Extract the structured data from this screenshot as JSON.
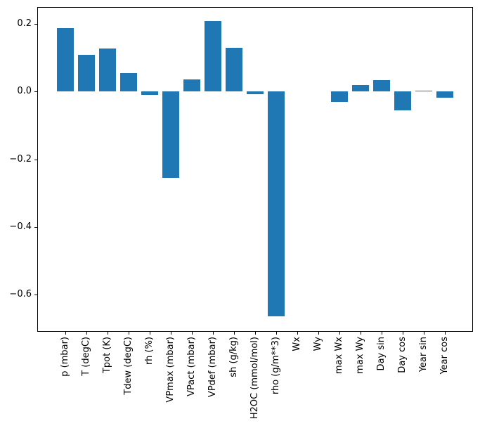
{
  "figure": {
    "background_color": "#ffffff",
    "spine_color": "#000000",
    "text_color": "#000000"
  },
  "chart_data": {
    "type": "bar",
    "title": "",
    "xlabel": "",
    "ylabel": "",
    "grid": false,
    "legend": null,
    "bar_color": "#1f77b4",
    "bar_width": 0.8,
    "xlim": [
      -1.34,
      19.34
    ],
    "ylim": [
      -0.71,
      0.25
    ],
    "categories": [
      "p (mbar)",
      "T (degC)",
      "Tpot (K)",
      "Tdew (degC)",
      "rh (%)",
      "VPmax (mbar)",
      "VPact (mbar)",
      "VPdef (mbar)",
      "sh (g/kg)",
      "H2OC (mmol/mol)",
      "rho (g/m**3)",
      "Wx",
      "Wy",
      "max Wx",
      "max Wy",
      "Day sin",
      "Day cos",
      "Year sin",
      "Year cos"
    ],
    "values": [
      0.188,
      0.108,
      0.127,
      0.055,
      -0.01,
      -0.254,
      0.036,
      0.209,
      0.13,
      -0.008,
      -0.665,
      0.0,
      0.0,
      -0.03,
      0.019,
      0.033,
      -0.056,
      0.002,
      -0.019
    ],
    "yticks": [
      {
        "value": 0.2,
        "label": "0.2"
      },
      {
        "value": 0.0,
        "label": "0.0"
      },
      {
        "value": -0.2,
        "label": "−0.2"
      },
      {
        "value": -0.4,
        "label": "−0.4"
      },
      {
        "value": -0.6,
        "label": "−0.6"
      }
    ]
  }
}
